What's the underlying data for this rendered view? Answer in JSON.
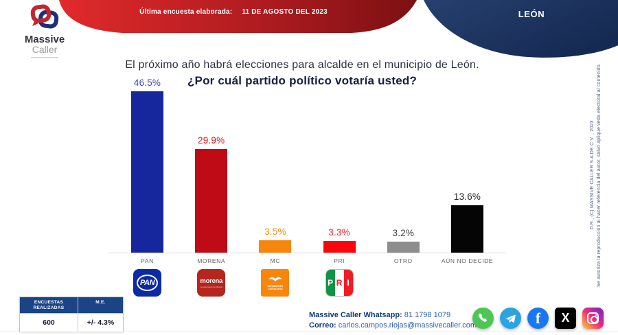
{
  "header": {
    "survey_label": "Última encuesta elaborada:",
    "survey_date": "11 DE  AGOSTO DEL 2023",
    "region": "LEÓN",
    "red_gradient": [
      "#e12a2b",
      "#7c1013"
    ],
    "blue_gradient": [
      "#27406f",
      "#152a52"
    ]
  },
  "brand": {
    "name": "Massive",
    "sub": "Caller"
  },
  "title": {
    "line1": "El próximo año habrá elecciones para alcalde en el municipio de León.",
    "line2": "¿Por cuál partido político votaría usted?"
  },
  "chart_data": {
    "type": "bar",
    "title": "¿Por cuál partido político votaría usted?",
    "categories": [
      "PAN",
      "MORENA",
      "MC",
      "PRI",
      "OTRO",
      "AÚN NO DECIDE"
    ],
    "values": [
      46.5,
      29.9,
      3.5,
      3.3,
      3.2,
      13.6
    ],
    "value_labels": [
      "46.5%",
      "29.9%",
      "3.5%",
      "3.3%",
      "3.2%",
      "13.6%"
    ],
    "bar_colors": [
      "#16269d",
      "#be0b16",
      "#f8860d",
      "#fb040c",
      "#8d8d8d",
      "#050505"
    ],
    "label_colors": [
      "#3649c5",
      "#e41322",
      "#f8930f",
      "#f4222e",
      "#3d3d3d",
      "#1f1f1f"
    ],
    "xlabel": "",
    "ylabel": "",
    "ylim": [
      0,
      50
    ],
    "grid": false,
    "legend": false,
    "party_logos": [
      "PAN",
      "MORENA",
      "MC",
      "PRI"
    ],
    "logo_texts": {
      "pan": "PAN",
      "morena": "morena",
      "morena_tag": "La esperanza de México",
      "mc_tag": "MOVIMIENTO CIUDADANO",
      "pri": [
        "P",
        "R",
        "I"
      ]
    }
  },
  "stats": {
    "col1_header": "ENCUESTAS REALIZADAS",
    "col2_header": "M.E.",
    "col1_value": "600",
    "col2_value": "+/- 4.3%"
  },
  "footer": {
    "whatsapp_label": "Massive Caller Whatsapp:",
    "whatsapp_number": "81 1798 1079",
    "email_label": "Correo:",
    "email": "carlos.campos.riojas@massivecaller.com"
  },
  "social": [
    "whatsapp",
    "telegram",
    "facebook",
    "x",
    "instagram"
  ],
  "legal": {
    "line1": "D.R., (C) MASSIVE CALLER S.A DE C.V. , 2023",
    "line2": "Se autoriza la reproducción al hacer referencia del autor, salvo aplique veda electoral al contenido."
  }
}
